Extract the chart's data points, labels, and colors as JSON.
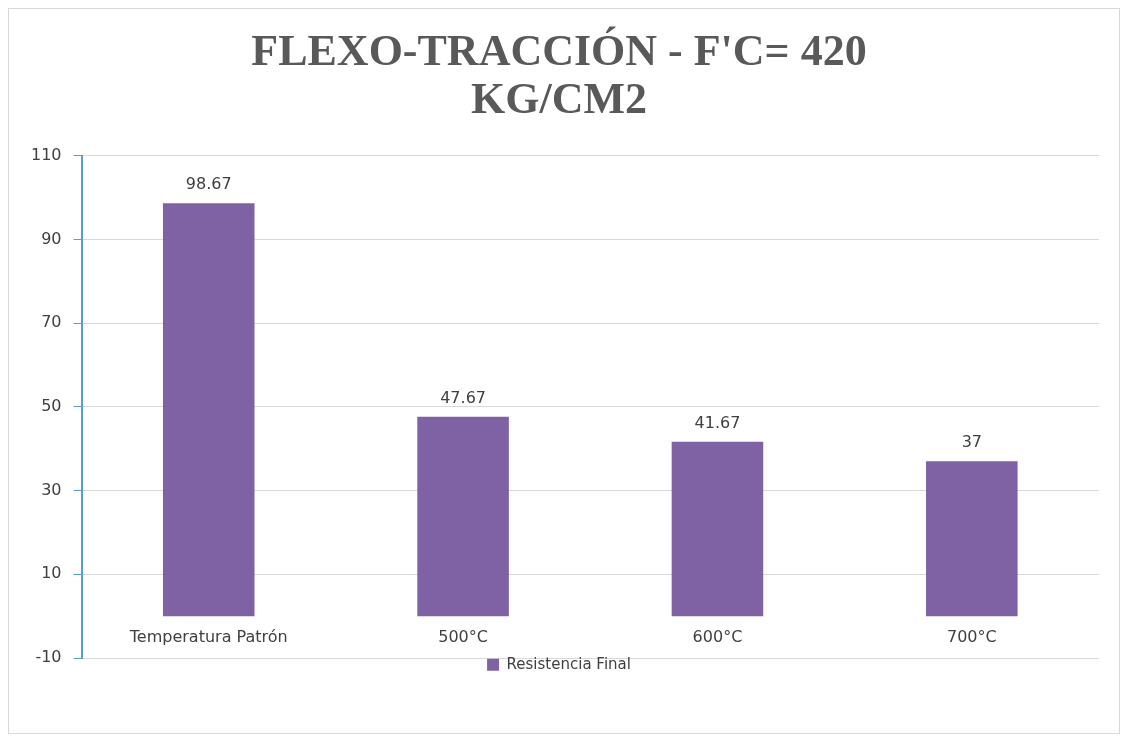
{
  "chart_data": {
    "type": "bar",
    "title": [
      "FLEXO-TRACCIÓN - F'C= 420",
      "KG/CM2"
    ],
    "categories": [
      "Temperatura Patrón",
      "500°C",
      "600°C",
      "700°C"
    ],
    "series": [
      {
        "name": "Resistencia Final",
        "color": "#7e62a3",
        "values": [
          98.67,
          47.67,
          41.67,
          37
        ]
      }
    ],
    "ylim": [
      -10,
      110
    ],
    "yticks": [
      -10,
      10,
      30,
      50,
      70,
      90,
      110
    ],
    "grid": "y",
    "legend": "bottom",
    "data_labels": true
  }
}
